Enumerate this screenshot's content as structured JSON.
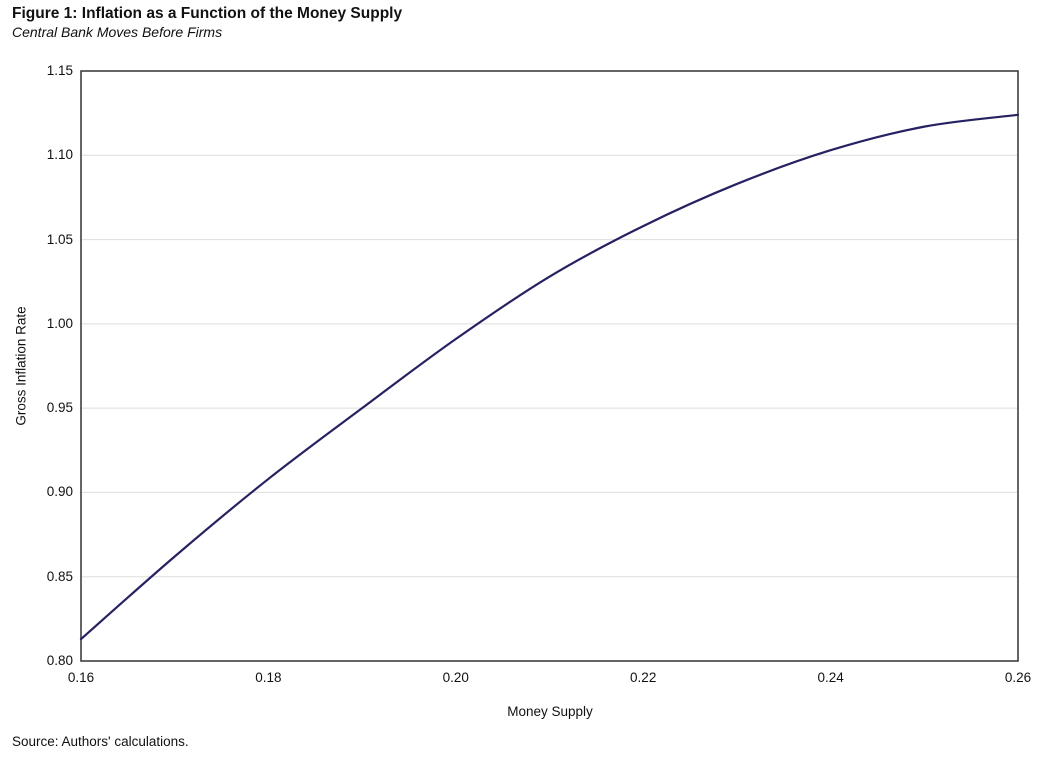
{
  "figure": {
    "title": "Figure 1: Inflation as a Function of the Money Supply",
    "subtitle": "Central Bank Moves Before Firms",
    "source": "Source: Authors' calculations."
  },
  "chart_data": {
    "type": "line",
    "title": "Figure 1: Inflation as a Function of the Money Supply",
    "subtitle": "Central Bank Moves Before Firms",
    "xlabel": "Money Supply",
    "ylabel": "Gross Inflation Rate",
    "xlim": [
      0.16,
      0.26
    ],
    "ylim": [
      0.8,
      1.15
    ],
    "x_ticks": [
      0.16,
      0.18,
      0.2,
      0.22,
      0.24,
      0.26
    ],
    "y_ticks": [
      0.8,
      0.85,
      0.9,
      0.95,
      1.0,
      1.05,
      1.1,
      1.15
    ],
    "grid": "horizontal-only",
    "legend": "none",
    "colors": {
      "line": "#262262",
      "plot_border": "#3f3f3f",
      "gridline": "#dedede",
      "text": "#111111",
      "background": "#ffffff"
    },
    "series": [
      {
        "name": "Gross inflation rate",
        "x": [
          0.16,
          0.17,
          0.18,
          0.19,
          0.2,
          0.21,
          0.22,
          0.23,
          0.24,
          0.25,
          0.26
        ],
        "y": [
          0.813,
          0.862,
          0.908,
          0.95,
          0.991,
          1.028,
          1.058,
          1.083,
          1.103,
          1.117,
          1.124
        ]
      }
    ]
  }
}
